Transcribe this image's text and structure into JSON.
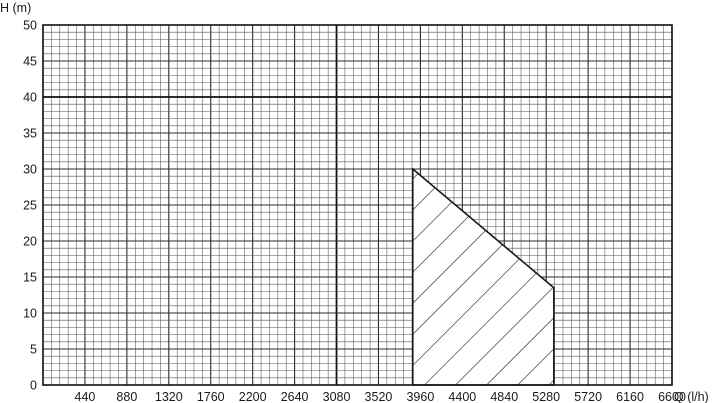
{
  "chart_data": {
    "type": "area",
    "title": "",
    "xlabel": "Q (l/h)",
    "ylabel": "H (m)",
    "xlim": [
      0,
      6600
    ],
    "ylim": [
      0,
      50
    ],
    "x_ticks": [
      440,
      880,
      1320,
      1760,
      2200,
      2640,
      3080,
      3520,
      3960,
      4400,
      4840,
      5280,
      5720,
      6160,
      6600
    ],
    "y_ticks": [
      0,
      5,
      10,
      15,
      20,
      25,
      30,
      35,
      40,
      45,
      50
    ],
    "grid": true,
    "grid_minor_x_step": 88,
    "grid_minor_y_step": 1,
    "grid_major_x_step": 440,
    "grid_major_y_step": 5,
    "grid_heavy_x": 3080,
    "grid_heavy_y": 40,
    "series": [
      {
        "fill": "hatched",
        "x": [
          3880,
          3880,
          5360,
          5360
        ],
        "y": [
          0,
          30,
          13.5,
          0
        ]
      }
    ]
  }
}
